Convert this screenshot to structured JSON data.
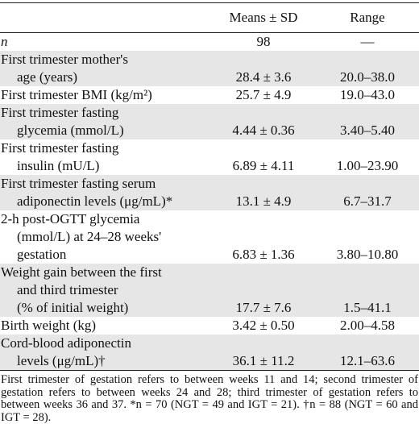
{
  "table": {
    "header": {
      "means": "Means ± SD",
      "range": "Range"
    },
    "rows": [
      {
        "label": [
          "n"
        ],
        "means": "98",
        "range": "—"
      },
      {
        "label": [
          "First trimester mother's",
          "age (years)"
        ],
        "means": "28.4 ± 3.6",
        "range": "20.0–38.0"
      },
      {
        "label": [
          "First trimester BMI (kg/m²)"
        ],
        "means": "25.7 ± 4.9",
        "range": "19.0–43.0"
      },
      {
        "label": [
          "First trimester fasting",
          "glycemia (mmol/L)"
        ],
        "means": "4.44 ± 0.36",
        "range": "3.40–5.40"
      },
      {
        "label": [
          "First trimester fasting",
          "insulin (mU/L)"
        ],
        "means": "6.89 ± 4.11",
        "range": "1.00–23.90"
      },
      {
        "label": [
          "First trimester fasting serum",
          "adiponectin levels (μg/mL)*"
        ],
        "means": "13.1 ± 4.9",
        "range": "6.7–31.7"
      },
      {
        "label": [
          "2-h post-OGTT glycemia",
          "(mmol/L) at 24–28 weeks'",
          "gestation"
        ],
        "means": "6.83 ± 1.36",
        "range": "3.80–10.80"
      },
      {
        "label": [
          "Weight gain between the first",
          "and third trimester",
          "(% of initial weight)"
        ],
        "means": "17.7 ± 7.6",
        "range": "1.5–41.1"
      },
      {
        "label": [
          "Birth weight (kg)"
        ],
        "means": "3.42 ± 0.50",
        "range": "2.00–4.58"
      },
      {
        "label": [
          "Cord-blood adiponectin",
          "levels (μg/mL)†"
        ],
        "means": "36.1 ± 11.2",
        "range": "12.1–63.6"
      }
    ],
    "footnote": "First trimester of gestation refers to between weeks 11 and 14; second trimester of gestation refers to between weeks 24 and 28; third trimester of gestation refers to between weeks 36 and 37. *n = 70 (NGT = 49 and IGT = 21). †n = 88 (NGT = 60 and IGT = 28)."
  }
}
